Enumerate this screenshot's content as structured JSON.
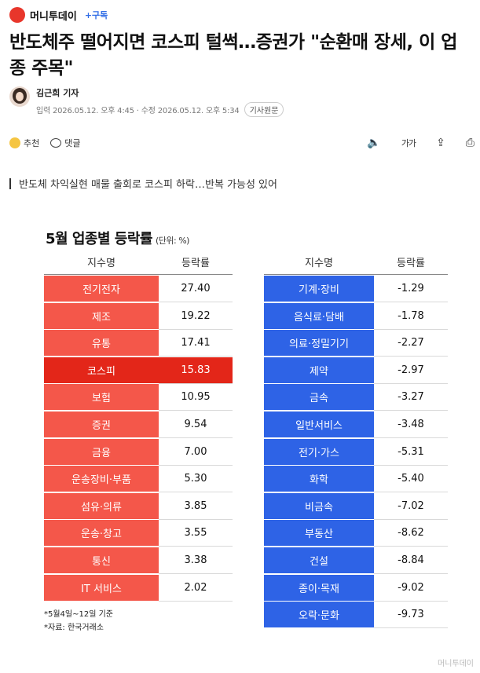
{
  "header": {
    "logo_text": "머니투데이",
    "brand": "머니투데이",
    "subscribe": "+구독"
  },
  "article": {
    "title": "반도체주 떨어지면 코스피 털썩…증권가 \"순환매 장세, 이 업종 주목\"",
    "author": "김근희 기자",
    "dates": "입력 2026.05.12. 오후 4:45 · 수정 2026.05.12. 오후 5:34",
    "source_chip": "기사원문",
    "subtitle": "반도체 차익실현 매물 출회로 코스피 하락…반복 가능성 있어"
  },
  "actions": {
    "recommend": "추천",
    "comment": "댓글",
    "font_size": "가가"
  },
  "chart_data": {
    "type": "table",
    "title": "5월 업종별 등락률",
    "unit": "(단위: %)",
    "headers": [
      "지수명",
      "등락률"
    ],
    "highlight": "코스피",
    "colors": {
      "up": "#f4574a",
      "up_highlight": "#e32619",
      "down": "#2e63e6"
    },
    "up_rows": [
      {
        "name": "전기전자",
        "value": "27.40"
      },
      {
        "name": "제조",
        "value": "19.22"
      },
      {
        "name": "유통",
        "value": "17.41"
      },
      {
        "name": "코스피",
        "value": "15.83"
      },
      {
        "name": "보험",
        "value": "10.95"
      },
      {
        "name": "증권",
        "value": "9.54"
      },
      {
        "name": "금융",
        "value": "7.00"
      },
      {
        "name": "운송장비·부품",
        "value": "5.30"
      },
      {
        "name": "섬유·의류",
        "value": "3.85"
      },
      {
        "name": "운송·창고",
        "value": "3.55"
      },
      {
        "name": "통신",
        "value": "3.38"
      },
      {
        "name": "IT 서비스",
        "value": "2.02"
      }
    ],
    "down_rows": [
      {
        "name": "기계·장비",
        "value": "-1.29"
      },
      {
        "name": "음식료·담배",
        "value": "-1.78"
      },
      {
        "name": "의료·정밀기기",
        "value": "-2.27"
      },
      {
        "name": "제약",
        "value": "-2.97"
      },
      {
        "name": "금속",
        "value": "-3.27"
      },
      {
        "name": "일반서비스",
        "value": "-3.48"
      },
      {
        "name": "전기·가스",
        "value": "-5.31"
      },
      {
        "name": "화학",
        "value": "-5.40"
      },
      {
        "name": "비금속",
        "value": "-7.02"
      },
      {
        "name": "부동산",
        "value": "-8.62"
      },
      {
        "name": "건설",
        "value": "-8.84"
      },
      {
        "name": "종이·목재",
        "value": "-9.02"
      },
      {
        "name": "오락·문화",
        "value": "-9.73"
      }
    ],
    "notes": [
      "*5월4일~12일 기준",
      "*자료: 한국거래소"
    ]
  },
  "watermark": "머니투데이"
}
